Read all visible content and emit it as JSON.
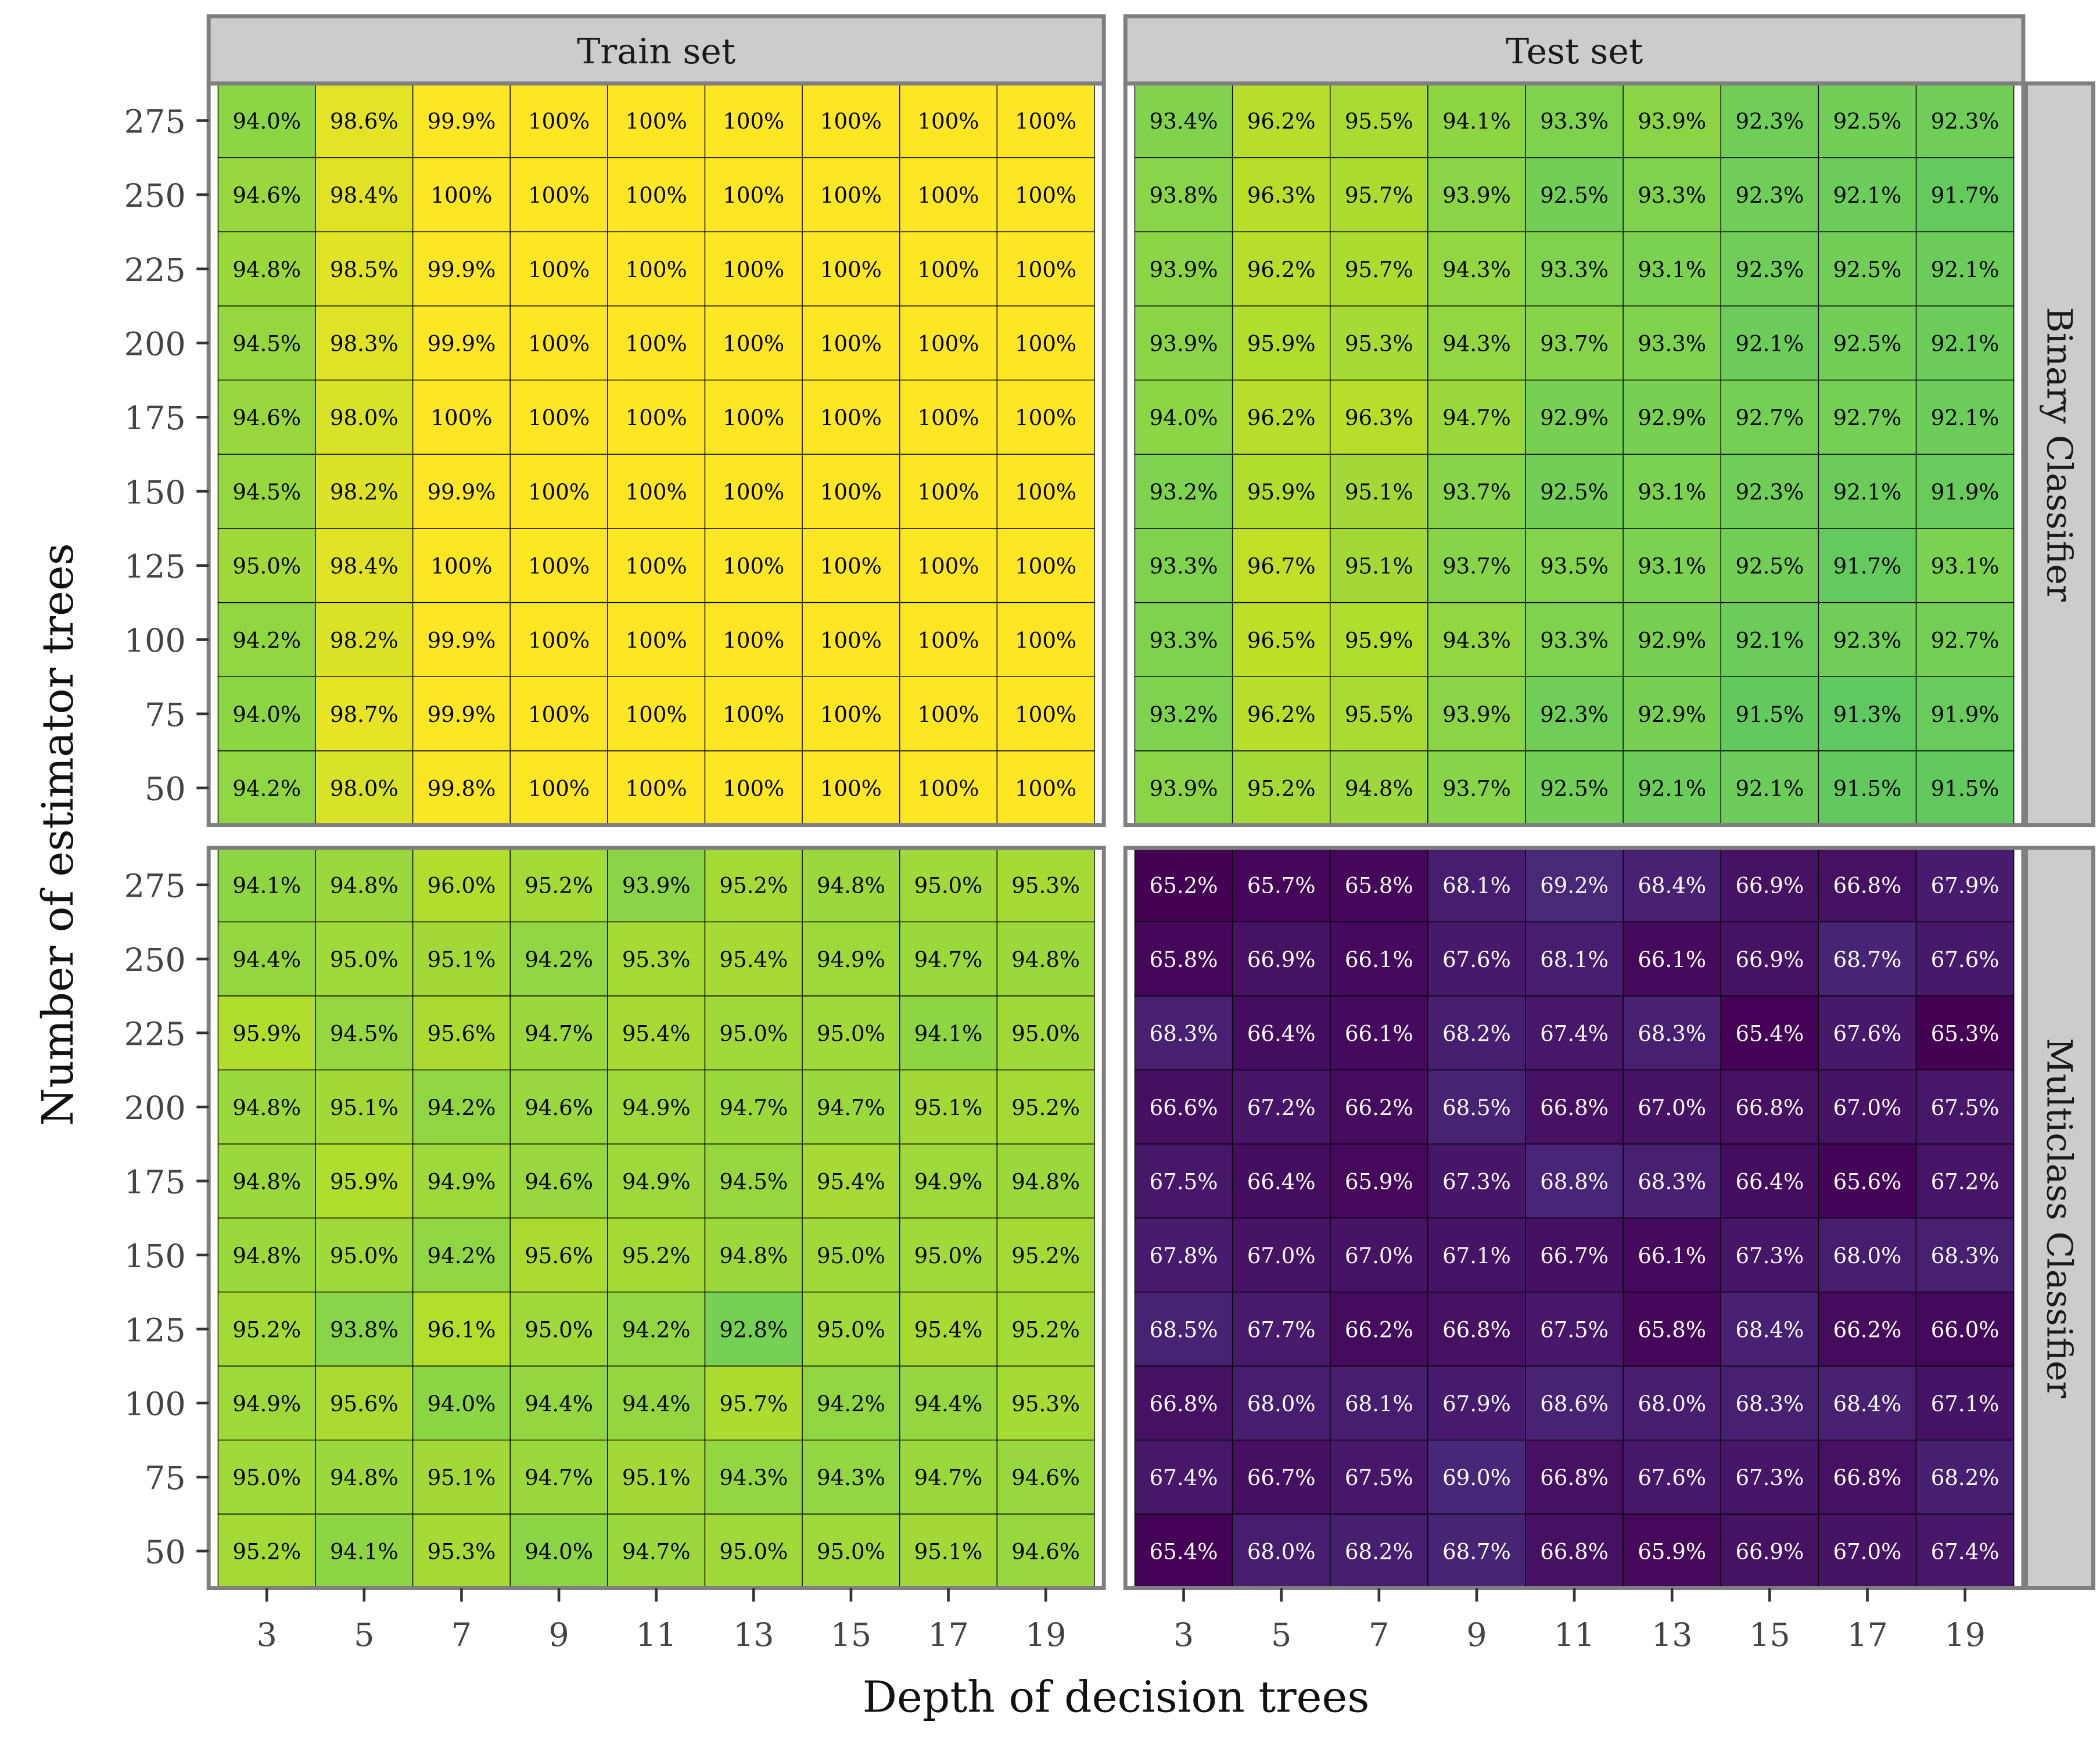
{
  "chart_data": {
    "type": "heatmap",
    "xlabel": "Depth of decision trees",
    "ylabel": "Number of estimator trees",
    "x_categories": [
      "3",
      "5",
      "7",
      "9",
      "11",
      "13",
      "15",
      "17",
      "19"
    ],
    "y_categories_top_to_bottom": [
      "275",
      "250",
      "225",
      "200",
      "175",
      "150",
      "125",
      "100",
      "75",
      "50"
    ],
    "column_facets": [
      "Train set",
      "Test set"
    ],
    "row_facets": [
      "Binary Classifier",
      "Multiclass Classifier"
    ],
    "color_scale": {
      "name": "viridis",
      "min": 65.2,
      "max": 100
    },
    "panels": [
      {
        "row": 0,
        "col": 0,
        "values": [
          [
            "94.0%",
            "98.6%",
            "99.9%",
            "100%",
            "100%",
            "100%",
            "100%",
            "100%",
            "100%"
          ],
          [
            "94.6%",
            "98.4%",
            "100%",
            "100%",
            "100%",
            "100%",
            "100%",
            "100%",
            "100%"
          ],
          [
            "94.8%",
            "98.5%",
            "99.9%",
            "100%",
            "100%",
            "100%",
            "100%",
            "100%",
            "100%"
          ],
          [
            "94.5%",
            "98.3%",
            "99.9%",
            "100%",
            "100%",
            "100%",
            "100%",
            "100%",
            "100%"
          ],
          [
            "94.6%",
            "98.0%",
            "100%",
            "100%",
            "100%",
            "100%",
            "100%",
            "100%",
            "100%"
          ],
          [
            "94.5%",
            "98.2%",
            "99.9%",
            "100%",
            "100%",
            "100%",
            "100%",
            "100%",
            "100%"
          ],
          [
            "95.0%",
            "98.4%",
            "100%",
            "100%",
            "100%",
            "100%",
            "100%",
            "100%",
            "100%"
          ],
          [
            "94.2%",
            "98.2%",
            "99.9%",
            "100%",
            "100%",
            "100%",
            "100%",
            "100%",
            "100%"
          ],
          [
            "94.0%",
            "98.7%",
            "99.9%",
            "100%",
            "100%",
            "100%",
            "100%",
            "100%",
            "100%"
          ],
          [
            "94.2%",
            "98.0%",
            "99.8%",
            "100%",
            "100%",
            "100%",
            "100%",
            "100%",
            "100%"
          ]
        ]
      },
      {
        "row": 0,
        "col": 1,
        "values": [
          [
            "93.4%",
            "96.2%",
            "95.5%",
            "94.1%",
            "93.3%",
            "93.9%",
            "92.3%",
            "92.5%",
            "92.3%"
          ],
          [
            "93.8%",
            "96.3%",
            "95.7%",
            "93.9%",
            "92.5%",
            "93.3%",
            "92.3%",
            "92.1%",
            "91.7%"
          ],
          [
            "93.9%",
            "96.2%",
            "95.7%",
            "94.3%",
            "93.3%",
            "93.1%",
            "92.3%",
            "92.5%",
            "92.1%"
          ],
          [
            "93.9%",
            "95.9%",
            "95.3%",
            "94.3%",
            "93.7%",
            "93.3%",
            "92.1%",
            "92.5%",
            "92.1%"
          ],
          [
            "94.0%",
            "96.2%",
            "96.3%",
            "94.7%",
            "92.9%",
            "92.9%",
            "92.7%",
            "92.7%",
            "92.1%"
          ],
          [
            "93.2%",
            "95.9%",
            "95.1%",
            "93.7%",
            "92.5%",
            "93.1%",
            "92.3%",
            "92.1%",
            "91.9%"
          ],
          [
            "93.3%",
            "96.7%",
            "95.1%",
            "93.7%",
            "93.5%",
            "93.1%",
            "92.5%",
            "91.7%",
            "93.1%"
          ],
          [
            "93.3%",
            "96.5%",
            "95.9%",
            "94.3%",
            "93.3%",
            "92.9%",
            "92.1%",
            "92.3%",
            "92.7%"
          ],
          [
            "93.2%",
            "96.2%",
            "95.5%",
            "93.9%",
            "92.3%",
            "92.9%",
            "91.5%",
            "91.3%",
            "91.9%"
          ],
          [
            "93.9%",
            "95.2%",
            "94.8%",
            "93.7%",
            "92.5%",
            "92.1%",
            "92.1%",
            "91.5%",
            "91.5%"
          ]
        ]
      },
      {
        "row": 1,
        "col": 0,
        "values": [
          [
            "94.1%",
            "94.8%",
            "96.0%",
            "95.2%",
            "93.9%",
            "95.2%",
            "94.8%",
            "95.0%",
            "95.3%"
          ],
          [
            "94.4%",
            "95.0%",
            "95.1%",
            "94.2%",
            "95.3%",
            "95.4%",
            "94.9%",
            "94.7%",
            "94.8%"
          ],
          [
            "95.9%",
            "94.5%",
            "95.6%",
            "94.7%",
            "95.4%",
            "95.0%",
            "95.0%",
            "94.1%",
            "95.0%"
          ],
          [
            "94.8%",
            "95.1%",
            "94.2%",
            "94.6%",
            "94.9%",
            "94.7%",
            "94.7%",
            "95.1%",
            "95.2%"
          ],
          [
            "94.8%",
            "95.9%",
            "94.9%",
            "94.6%",
            "94.9%",
            "94.5%",
            "95.4%",
            "94.9%",
            "94.8%"
          ],
          [
            "94.8%",
            "95.0%",
            "94.2%",
            "95.6%",
            "95.2%",
            "94.8%",
            "95.0%",
            "95.0%",
            "95.2%"
          ],
          [
            "95.2%",
            "93.8%",
            "96.1%",
            "95.0%",
            "94.2%",
            "92.8%",
            "95.0%",
            "95.4%",
            "95.2%"
          ],
          [
            "94.9%",
            "95.6%",
            "94.0%",
            "94.4%",
            "94.4%",
            "95.7%",
            "94.2%",
            "94.4%",
            "95.3%"
          ],
          [
            "95.0%",
            "94.8%",
            "95.1%",
            "94.7%",
            "95.1%",
            "94.3%",
            "94.3%",
            "94.7%",
            "94.6%"
          ],
          [
            "95.2%",
            "94.1%",
            "95.3%",
            "94.0%",
            "94.7%",
            "95.0%",
            "95.0%",
            "95.1%",
            "94.6%"
          ]
        ]
      },
      {
        "row": 1,
        "col": 1,
        "values": [
          [
            "65.2%",
            "65.7%",
            "65.8%",
            "68.1%",
            "69.2%",
            "68.4%",
            "66.9%",
            "66.8%",
            "67.9%"
          ],
          [
            "65.8%",
            "66.9%",
            "66.1%",
            "67.6%",
            "68.1%",
            "66.1%",
            "66.9%",
            "68.7%",
            "67.6%"
          ],
          [
            "68.3%",
            "66.4%",
            "66.1%",
            "68.2%",
            "67.4%",
            "68.3%",
            "65.4%",
            "67.6%",
            "65.3%"
          ],
          [
            "66.6%",
            "67.2%",
            "66.2%",
            "68.5%",
            "66.8%",
            "67.0%",
            "66.8%",
            "67.0%",
            "67.5%"
          ],
          [
            "67.5%",
            "66.4%",
            "65.9%",
            "67.3%",
            "68.8%",
            "68.3%",
            "66.4%",
            "65.6%",
            "67.2%"
          ],
          [
            "67.8%",
            "67.0%",
            "67.0%",
            "67.1%",
            "66.7%",
            "66.1%",
            "67.3%",
            "68.0%",
            "68.3%"
          ],
          [
            "68.5%",
            "67.7%",
            "66.2%",
            "66.8%",
            "67.5%",
            "65.8%",
            "68.4%",
            "66.2%",
            "66.0%"
          ],
          [
            "66.8%",
            "68.0%",
            "68.1%",
            "67.9%",
            "68.6%",
            "68.0%",
            "68.3%",
            "68.4%",
            "67.1%"
          ],
          [
            "67.4%",
            "66.7%",
            "67.5%",
            "69.0%",
            "66.8%",
            "67.6%",
            "67.3%",
            "66.8%",
            "68.2%"
          ],
          [
            "65.4%",
            "68.0%",
            "68.2%",
            "68.7%",
            "66.8%",
            "65.9%",
            "66.9%",
            "67.0%",
            "67.4%"
          ]
        ]
      }
    ]
  }
}
